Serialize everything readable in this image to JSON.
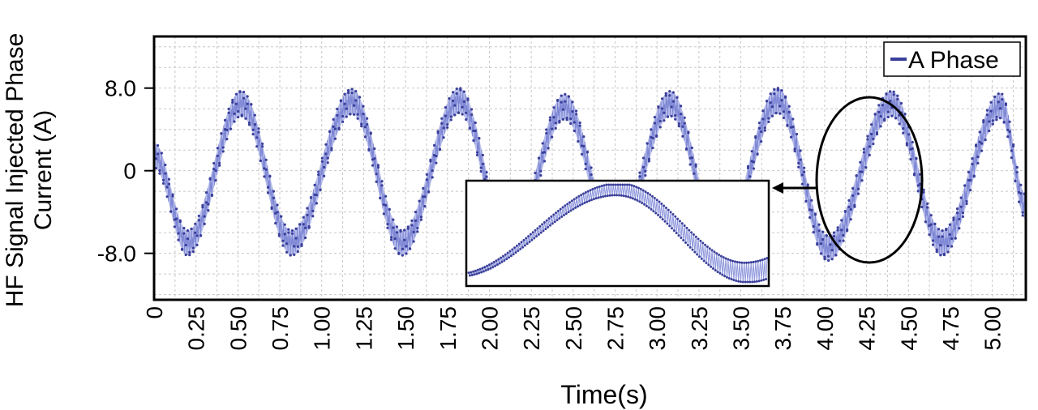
{
  "chart_data": {
    "type": "line",
    "xlabel": "Time(s)",
    "ylabel": [
      "HF Signal Injected Phase",
      "Current (A)"
    ],
    "x_tick_labels": [
      "0",
      "0.25",
      "0.50",
      "0.75",
      "1.00",
      "1.25",
      "1.50",
      "1.75",
      "2.00",
      "2.25",
      "2.50",
      "2.75",
      "3.00",
      "3.25",
      "3.50",
      "3.75",
      "4.00",
      "4.25",
      "4.50",
      "4.75",
      "5.00"
    ],
    "x_ticks": [
      0,
      0.25,
      0.5,
      0.75,
      1.0,
      1.25,
      1.5,
      1.75,
      2.0,
      2.25,
      2.5,
      2.75,
      3.0,
      3.25,
      3.5,
      3.75,
      4.0,
      4.25,
      4.5,
      4.75,
      5.0
    ],
    "y_tick_labels": [
      "8.0",
      "0",
      "-8.0"
    ],
    "y_ticks": [
      8,
      0,
      -8
    ],
    "xlim": [
      0,
      5.2
    ],
    "ylim": [
      -12.5,
      13
    ],
    "grid": true,
    "legend": {
      "position": "top-right",
      "entries": [
        "A Phase"
      ]
    },
    "series": [
      {
        "name": "A Phase",
        "color": "#3a3f9a",
        "fill_color": "#aab2e6",
        "peaks": [
          {
            "x": 0.0,
            "y": 1.5
          },
          {
            "x": 0.2,
            "y": -7.0
          },
          {
            "x": 0.52,
            "y": 6.5
          },
          {
            "x": 0.82,
            "y": -7.0
          },
          {
            "x": 1.18,
            "y": 6.7
          },
          {
            "x": 1.48,
            "y": -7.0
          },
          {
            "x": 1.82,
            "y": 6.8
          },
          {
            "x": 2.12,
            "y": -7.5
          },
          {
            "x": 2.45,
            "y": 6.2
          },
          {
            "x": 2.75,
            "y": -7.0
          },
          {
            "x": 3.08,
            "y": 6.5
          },
          {
            "x": 3.38,
            "y": -7.5
          },
          {
            "x": 3.72,
            "y": 6.8
          },
          {
            "x": 4.02,
            "y": -7.5
          },
          {
            "x": 4.4,
            "y": 6.5
          },
          {
            "x": 4.7,
            "y": -7.0
          },
          {
            "x": 5.05,
            "y": 6.3
          },
          {
            "x": 5.2,
            "y": -3.5
          }
        ],
        "hf_ripple_amplitude": 1.2
      }
    ],
    "annotations": [
      {
        "type": "ellipse",
        "label": "zoom region",
        "x_center": 4.4,
        "y_center": -1.0,
        "x_radius": 0.32,
        "y_radius": 8.0
      },
      {
        "type": "inset",
        "label": "zoomed view of A Phase",
        "x_range": [
          4.05,
          4.75
        ]
      }
    ]
  }
}
